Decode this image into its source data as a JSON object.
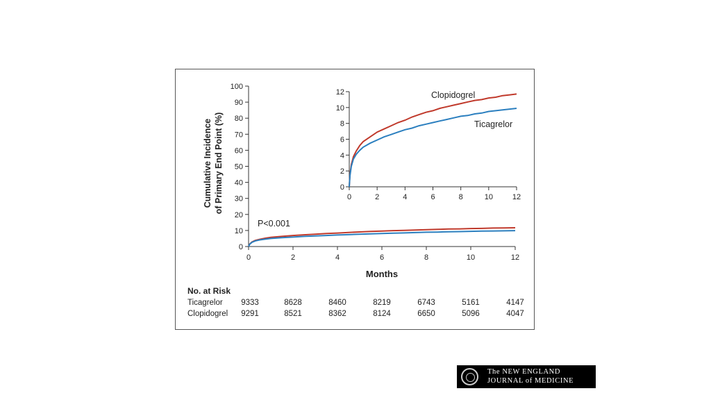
{
  "chart_data": [
    {
      "type": "line",
      "panel": "main",
      "xlabel": "Months",
      "ylabel_line1": "Cumulative Incidence",
      "ylabel_line2": "of Primary End Point (%)",
      "xlim": [
        0,
        12
      ],
      "ylim": [
        0,
        100
      ],
      "xticks": [
        0,
        2,
        4,
        6,
        8,
        10,
        12
      ],
      "yticks": [
        0,
        10,
        20,
        30,
        40,
        50,
        60,
        70,
        80,
        90,
        100
      ],
      "annotation": "P<0.001",
      "series": [
        {
          "name": "Clopidogrel",
          "color": "#c0392b",
          "x": [
            0,
            0.05,
            0.15,
            0.3,
            0.5,
            0.75,
            1,
            1.5,
            2,
            2.5,
            3,
            3.5,
            4,
            4.5,
            5,
            5.5,
            6,
            6.5,
            7,
            7.5,
            8,
            8.5,
            9,
            9.5,
            10,
            10.5,
            11,
            11.5,
            12
          ],
          "y": [
            0,
            1.5,
            2.8,
            3.8,
            4.5,
            5.2,
            5.7,
            6.3,
            6.9,
            7.3,
            7.7,
            8.1,
            8.4,
            8.8,
            9.1,
            9.4,
            9.6,
            9.9,
            10.1,
            10.3,
            10.5,
            10.7,
            10.9,
            11.0,
            11.2,
            11.3,
            11.5,
            11.6,
            11.7
          ]
        },
        {
          "name": "Ticagrelor",
          "color": "#2b7fbf",
          "x": [
            0,
            0.05,
            0.15,
            0.3,
            0.5,
            0.75,
            1,
            1.5,
            2,
            2.5,
            3,
            3.5,
            4,
            4.5,
            5,
            5.5,
            6,
            6.5,
            7,
            7.5,
            8,
            8.5,
            9,
            9.5,
            10,
            10.5,
            11,
            11.5,
            12
          ],
          "y": [
            0,
            1.4,
            2.6,
            3.5,
            4.1,
            4.6,
            5.0,
            5.5,
            5.9,
            6.3,
            6.6,
            6.9,
            7.2,
            7.4,
            7.7,
            7.9,
            8.1,
            8.3,
            8.5,
            8.7,
            8.9,
            9.0,
            9.2,
            9.3,
            9.5,
            9.6,
            9.7,
            9.8,
            9.9
          ]
        }
      ]
    },
    {
      "type": "line",
      "panel": "inset",
      "xlim": [
        0,
        12
      ],
      "ylim": [
        0,
        12
      ],
      "xticks": [
        0,
        2,
        4,
        6,
        8,
        10,
        12
      ],
      "yticks": [
        0,
        2,
        4,
        6,
        8,
        10,
        12
      ],
      "series_labels": [
        "Clopidogrel",
        "Ticagrelor"
      ]
    }
  ],
  "risk_table": {
    "title": "No. at Risk",
    "rows": [
      {
        "label": "Ticagrelor",
        "values": [
          "9333",
          "8628",
          "8460",
          "8219",
          "6743",
          "5161",
          "4147"
        ]
      },
      {
        "label": "Clopidogrel",
        "values": [
          "9291",
          "8521",
          "8362",
          "8124",
          "6650",
          "5096",
          "4047"
        ]
      }
    ]
  },
  "logo": {
    "line1": "The NEW ENGLAND",
    "line2": "JOURNAL of MEDICINE"
  }
}
